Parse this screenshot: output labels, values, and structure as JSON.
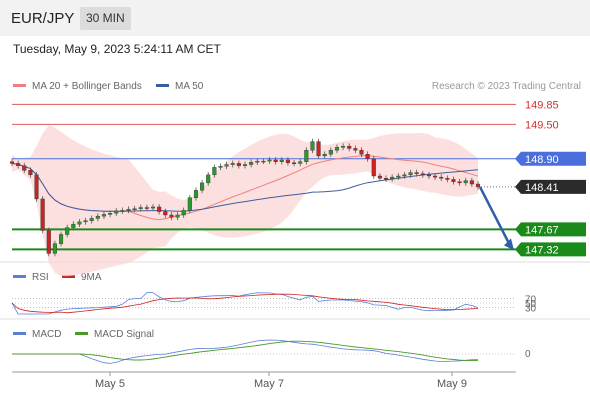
{
  "header": {
    "symbol": "EUR/JPY",
    "timeframe": "30 MIN"
  },
  "datetime": "Tuesday, May 9, 2023 5:24:11 AM CET",
  "legend": {
    "ma20_label": "MA 20 + Bollinger Bands",
    "ma20_color": "#f08080",
    "ma50_label": "MA 50",
    "ma50_color": "#3b5f9e"
  },
  "credit": "Research © 2023 Trading Central",
  "rsi_legend": {
    "rsi_label": "RSI",
    "rsi_color": "#5b7fd6",
    "ma9_label": "9MA",
    "ma9_color": "#cc2222"
  },
  "macd_legend": {
    "macd_label": "MACD",
    "macd_color": "#5b7fd6",
    "signal_label": "MACD Signal",
    "signal_color": "#4a9a2a"
  },
  "chart_data": {
    "type": "candlestick",
    "x_labels": [
      "May 5",
      "May 7",
      "May 9"
    ],
    "levels": [
      {
        "value": 149.85,
        "label": "149.85",
        "kind": "resistance",
        "color": "#e05a5a"
      },
      {
        "value": 149.5,
        "label": "149.50",
        "kind": "resistance",
        "color": "#e05a5a"
      },
      {
        "value": 148.9,
        "label": "148.90",
        "kind": "pivot",
        "color": "#4a6fdc"
      },
      {
        "value": 147.67,
        "label": "147.67",
        "kind": "support",
        "color": "#1a8a1a"
      },
      {
        "value": 147.32,
        "label": "147.32",
        "kind": "support",
        "color": "#1a8a1a"
      }
    ],
    "last_price": {
      "value": 148.41,
      "label": "148.41"
    },
    "forecast": {
      "from": 148.41,
      "to": 147.32,
      "direction": "down"
    },
    "closes": [
      148.82,
      148.78,
      148.7,
      148.62,
      148.2,
      147.65,
      147.25,
      147.42,
      147.58,
      147.7,
      147.76,
      147.8,
      147.82,
      147.86,
      147.9,
      147.93,
      147.95,
      147.99,
      148.0,
      148.02,
      148.03,
      148.05,
      148.04,
      148.06,
      147.98,
      147.92,
      147.88,
      147.92,
      148.0,
      148.22,
      148.35,
      148.48,
      148.62,
      148.75,
      148.77,
      148.8,
      148.82,
      148.78,
      148.8,
      148.84,
      148.86,
      148.86,
      148.88,
      148.85,
      148.88,
      148.83,
      148.82,
      148.85,
      149.05,
      149.2,
      148.95,
      148.98,
      149.05,
      149.1,
      149.12,
      149.08,
      149.05,
      148.98,
      148.9,
      148.6,
      148.56,
      148.55,
      148.58,
      148.6,
      148.62,
      148.66,
      148.64,
      148.62,
      148.6,
      148.58,
      148.56,
      148.54,
      148.5,
      148.48,
      148.52,
      148.46,
      148.41
    ],
    "price_range": [
      147.1,
      150.1
    ],
    "rsi": {
      "ticks": [
        70,
        50,
        30
      ],
      "range": [
        0,
        100
      ]
    },
    "macd": {
      "ticks": [
        0
      ]
    }
  }
}
